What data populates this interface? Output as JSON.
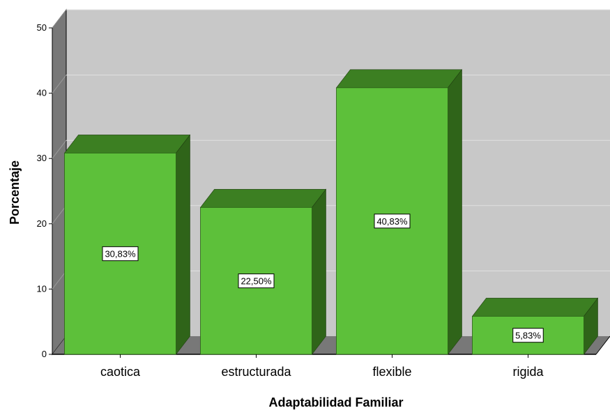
{
  "chart_data": {
    "type": "bar",
    "title": "",
    "xlabel": "Adaptabilidad Familiar",
    "ylabel": "Porcentaje",
    "categories": [
      "caotica",
      "estructurada",
      "flexible",
      "rigida"
    ],
    "values": [
      30.83,
      22.5,
      40.83,
      5.83
    ],
    "data_labels": [
      "30,83%",
      "22,50%",
      "40,83%",
      "5,83%"
    ],
    "ylim": [
      0,
      50
    ],
    "yticks": [
      "0",
      "10",
      "20",
      "30",
      "40",
      "50"
    ],
    "grid": true,
    "style": "3d",
    "colors": {
      "bar_front": "#5dc03a",
      "bar_top": "#3c7f22",
      "bar_side": "#2f6419",
      "plot_back": "#c8c8c8",
      "plot_left_wall": "#787878",
      "plot_floor": "#787878",
      "gridline": "#e0e0e0"
    }
  }
}
